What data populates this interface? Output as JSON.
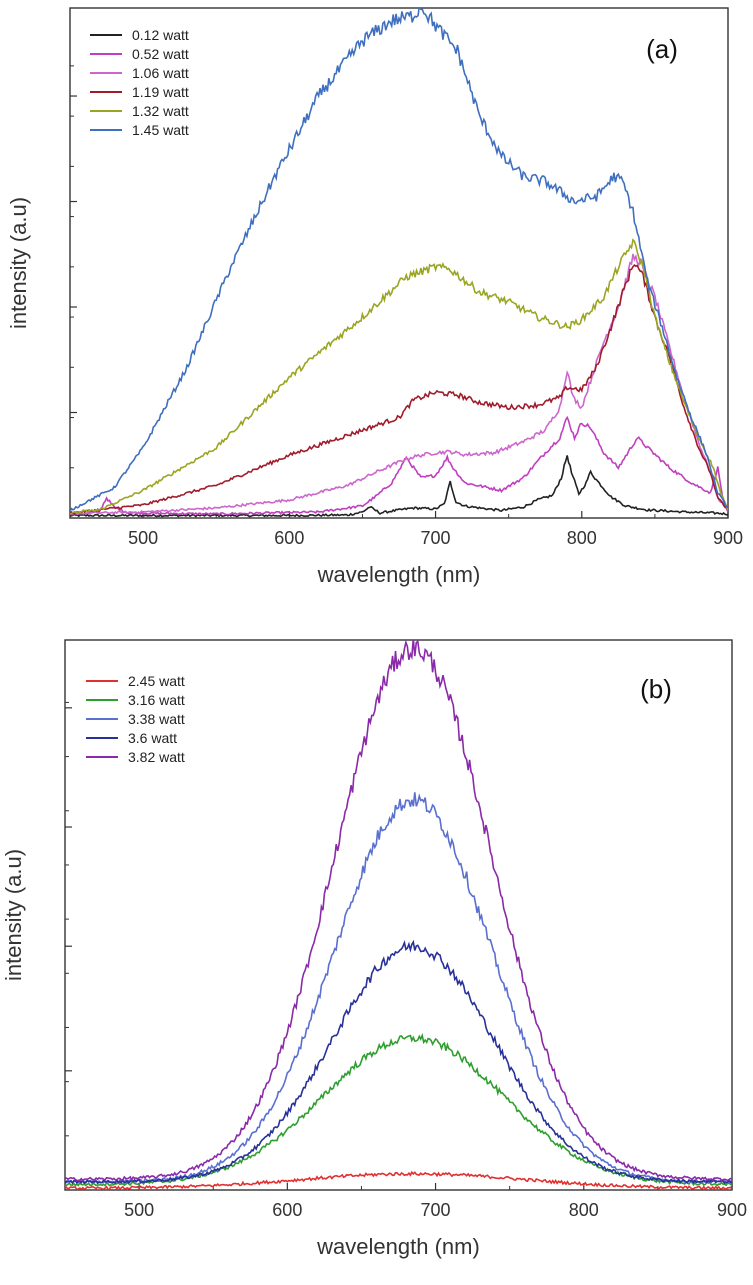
{
  "chart_data": [
    {
      "type": "line",
      "panel_label": "(a)",
      "xlabel": "wavelength (nm)",
      "ylabel": "intensity (a.u)",
      "xlim": [
        450,
        900
      ],
      "ylim": [
        0,
        100
      ],
      "x_ticks": [
        500,
        600,
        700,
        800,
        900
      ],
      "y_ticks": [
        21,
        42,
        63,
        84
      ],
      "legend_position": "top-left",
      "series": [
        {
          "name": "0.12 watt",
          "color": "#222222",
          "points": [
            [
              450,
              0.5
            ],
            [
              600,
              0.5
            ],
            [
              640,
              0.6
            ],
            [
              650,
              1.2
            ],
            [
              655,
              2.2
            ],
            [
              662,
              1.0
            ],
            [
              675,
              1.6
            ],
            [
              685,
              2.0
            ],
            [
              700,
              1.8
            ],
            [
              706,
              2.8
            ],
            [
              710,
              7.2
            ],
            [
              714,
              3.2
            ],
            [
              720,
              2.4
            ],
            [
              730,
              2.0
            ],
            [
              745,
              1.5
            ],
            [
              760,
              2.2
            ],
            [
              770,
              3.6
            ],
            [
              780,
              4.5
            ],
            [
              786,
              8.0
            ],
            [
              790,
              12.5
            ],
            [
              793,
              9.0
            ],
            [
              798,
              4.8
            ],
            [
              803,
              7.0
            ],
            [
              806,
              9.2
            ],
            [
              810,
              7.6
            ],
            [
              820,
              4.2
            ],
            [
              830,
              2.4
            ],
            [
              845,
              1.6
            ],
            [
              870,
              1.2
            ],
            [
              890,
              1.0
            ],
            [
              900,
              0.8
            ]
          ]
        },
        {
          "name": "0.52 watt",
          "color": "#bf3fbf",
          "points": [
            [
              450,
              0.8
            ],
            [
              470,
              1.2
            ],
            [
              475,
              4.0
            ],
            [
              480,
              2.2
            ],
            [
              490,
              1.0
            ],
            [
              550,
              0.8
            ],
            [
              620,
              1.2
            ],
            [
              650,
              2.4
            ],
            [
              660,
              4.5
            ],
            [
              670,
              7.0
            ],
            [
              680,
              12.0
            ],
            [
              690,
              8.0
            ],
            [
              700,
              8.5
            ],
            [
              708,
              12.0
            ],
            [
              712,
              10.0
            ],
            [
              720,
              7.0
            ],
            [
              730,
              6.4
            ],
            [
              745,
              5.5
            ],
            [
              760,
              8.0
            ],
            [
              775,
              13.0
            ],
            [
              785,
              16.0
            ],
            [
              790,
              20.0
            ],
            [
              795,
              16.0
            ],
            [
              800,
              19.0
            ],
            [
              806,
              18.0
            ],
            [
              815,
              13.0
            ],
            [
              825,
              10.0
            ],
            [
              838,
              16.0
            ],
            [
              845,
              14.0
            ],
            [
              860,
              10.0
            ],
            [
              875,
              7.0
            ],
            [
              888,
              5.0
            ],
            [
              893,
              10.0
            ],
            [
              897,
              3.0
            ],
            [
              900,
              1.0
            ]
          ]
        },
        {
          "name": "1.06 watt",
          "color": "#cc66cc",
          "points": [
            [
              450,
              0.9
            ],
            [
              500,
              1.2
            ],
            [
              550,
              2.0
            ],
            [
              600,
              3.6
            ],
            [
              640,
              6.5
            ],
            [
              660,
              9.2
            ],
            [
              680,
              11.8
            ],
            [
              690,
              12.5
            ],
            [
              700,
              13.0
            ],
            [
              710,
              13.2
            ],
            [
              720,
              12.6
            ],
            [
              740,
              13.0
            ],
            [
              760,
              15.2
            ],
            [
              775,
              17.5
            ],
            [
              785,
              22.0
            ],
            [
              790,
              29.5
            ],
            [
              794,
              24.0
            ],
            [
              800,
              22.0
            ],
            [
              805,
              26.5
            ],
            [
              815,
              35.0
            ],
            [
              825,
              42.0
            ],
            [
              835,
              52.0
            ],
            [
              840,
              51.0
            ],
            [
              850,
              44.0
            ],
            [
              860,
              34.0
            ],
            [
              870,
              24.0
            ],
            [
              880,
              15.0
            ],
            [
              888,
              9.0
            ],
            [
              893,
              4.0
            ],
            [
              900,
              1.5
            ]
          ]
        },
        {
          "name": "1.19 watt",
          "color": "#a01c2b",
          "points": [
            [
              450,
              1.0
            ],
            [
              500,
              2.6
            ],
            [
              550,
              6.5
            ],
            [
              600,
              12.5
            ],
            [
              650,
              17.5
            ],
            [
              675,
              20.0
            ],
            [
              685,
              23.5
            ],
            [
              700,
              25.0
            ],
            [
              715,
              24.5
            ],
            [
              730,
              23.0
            ],
            [
              750,
              22.0
            ],
            [
              770,
              22.5
            ],
            [
              785,
              24.0
            ],
            [
              790,
              26.0
            ],
            [
              800,
              25.5
            ],
            [
              810,
              30.0
            ],
            [
              820,
              38.0
            ],
            [
              830,
              46.5
            ],
            [
              836,
              51.0
            ],
            [
              842,
              48.0
            ],
            [
              850,
              40.0
            ],
            [
              860,
              32.0
            ],
            [
              870,
              22.0
            ],
            [
              880,
              14.0
            ],
            [
              888,
              9.0
            ],
            [
              893,
              4.0
            ],
            [
              900,
              1.5
            ]
          ]
        },
        {
          "name": "1.32 watt",
          "color": "#9aa521",
          "points": [
            [
              450,
              1.0
            ],
            [
              470,
              1.6
            ],
            [
              500,
              5.5
            ],
            [
              550,
              14.0
            ],
            [
              600,
              28.0
            ],
            [
              650,
              40.0
            ],
            [
              680,
              48.0
            ],
            [
              700,
              50.0
            ],
            [
              710,
              49.5
            ],
            [
              730,
              45.0
            ],
            [
              750,
              43.0
            ],
            [
              770,
              40.0
            ],
            [
              790,
              38.0
            ],
            [
              800,
              39.5
            ],
            [
              815,
              44.0
            ],
            [
              825,
              50.0
            ],
            [
              835,
              55.0
            ],
            [
              842,
              50.0
            ],
            [
              850,
              40.0
            ],
            [
              860,
              31.0
            ],
            [
              870,
              23.0
            ],
            [
              880,
              16.0
            ],
            [
              890,
              10.0
            ],
            [
              895,
              5.0
            ],
            [
              900,
              1.5
            ]
          ]
        },
        {
          "name": "1.45 watt",
          "color": "#3f6fbf",
          "points": [
            [
              450,
              1.5
            ],
            [
              480,
              6.0
            ],
            [
              500,
              14.0
            ],
            [
              530,
              30.0
            ],
            [
              560,
              50.0
            ],
            [
              590,
              68.0
            ],
            [
              620,
              84.0
            ],
            [
              650,
              95.0
            ],
            [
              670,
              99.0
            ],
            [
              685,
              100.0
            ],
            [
              690,
              102.0
            ],
            [
              700,
              98.0
            ],
            [
              715,
              93.0
            ],
            [
              730,
              80.0
            ],
            [
              745,
              72.0
            ],
            [
              760,
              68.0
            ],
            [
              775,
              67.0
            ],
            [
              795,
              63.0
            ],
            [
              810,
              64.0
            ],
            [
              822,
              68.0
            ],
            [
              828,
              67.0
            ],
            [
              835,
              61.0
            ],
            [
              845,
              47.0
            ],
            [
              855,
              38.0
            ],
            [
              865,
              28.0
            ],
            [
              875,
              20.0
            ],
            [
              885,
              13.0
            ],
            [
              893,
              5.0
            ],
            [
              900,
              2.0
            ]
          ]
        }
      ]
    },
    {
      "type": "line",
      "panel_label": "(b)",
      "xlabel": "wavelength (nm)",
      "ylabel": "intensity (a.u)",
      "xlim": [
        450,
        900
      ],
      "ylim": [
        0,
        100
      ],
      "x_ticks": [
        500,
        600,
        700,
        800,
        900
      ],
      "y_ticks": [
        22,
        45,
        67,
        89
      ],
      "legend_position": "top-left",
      "series": [
        {
          "name": "2.45 watt",
          "color": "#e03030",
          "peak": 3.0,
          "width": 130,
          "base": 0.3
        },
        {
          "name": "3.16 watt",
          "color": "#2e9e2e",
          "peak": 28.0,
          "width": 105,
          "base": 1.0
        },
        {
          "name": "3.38 watt",
          "color": "#5a6fd0",
          "peak": 72.0,
          "width": 92,
          "base": 1.5
        },
        {
          "name": "3.6 watt",
          "color": "#28309a",
          "peak": 45.0,
          "width": 94,
          "base": 1.5
        },
        {
          "name": "3.82 watt",
          "color": "#8a2aa8",
          "peak": 100.0,
          "width": 92,
          "base": 2.0
        }
      ]
    }
  ]
}
